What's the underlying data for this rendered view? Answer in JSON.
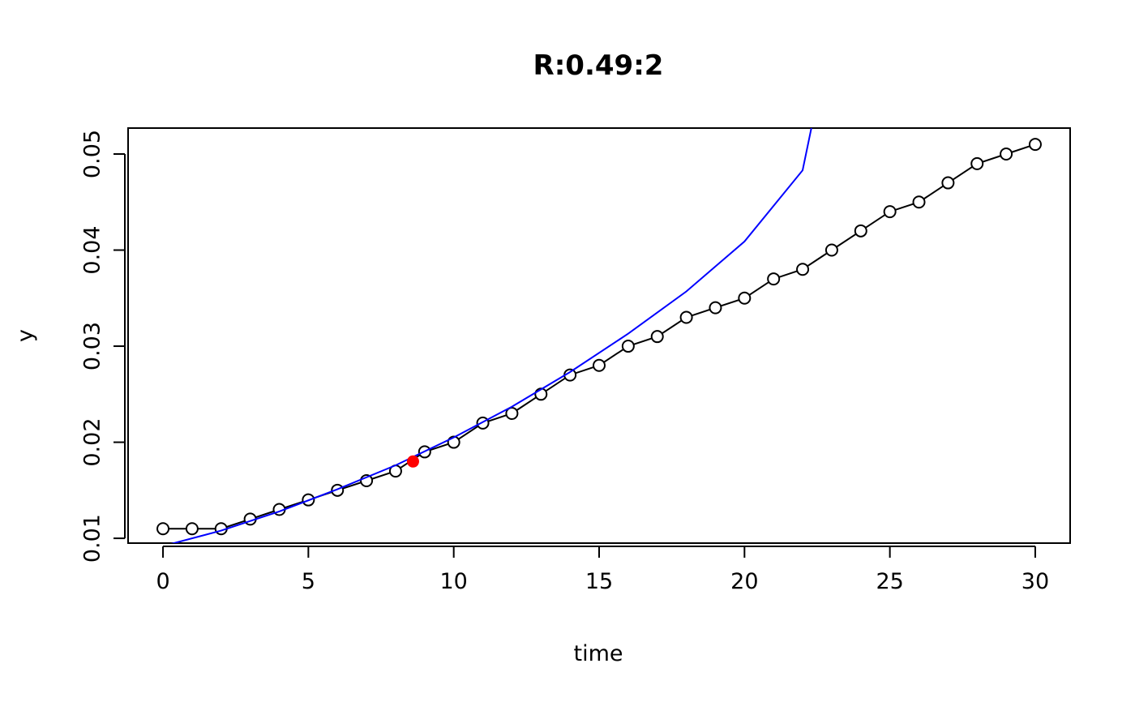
{
  "chart_data": {
    "type": "scatter",
    "title": "R:0.49:2",
    "xlabel": "time",
    "ylabel": "y",
    "xlim": [
      -1.2,
      31.2
    ],
    "ylim": [
      0.0095,
      0.0527
    ],
    "x_ticks": [
      0,
      5,
      10,
      15,
      20,
      25,
      30
    ],
    "y_ticks": [
      0.01,
      0.02,
      0.03,
      0.04,
      0.05
    ],
    "x_tick_labels": [
      "0",
      "5",
      "10",
      "15",
      "20",
      "25",
      "30"
    ],
    "y_tick_labels": [
      "0.01",
      "0.02",
      "0.03",
      "0.04",
      "0.05"
    ],
    "grid": false,
    "series": [
      {
        "style": "points-and-line",
        "color": "#000000",
        "x": [
          0,
          1,
          2,
          3,
          4,
          5,
          6,
          7,
          8,
          9,
          10,
          11,
          12,
          13,
          14,
          15,
          16,
          17,
          18,
          19,
          20,
          21,
          22,
          23,
          24,
          25,
          26,
          27,
          28,
          29,
          30
        ],
        "y": [
          0.011,
          0.011,
          0.011,
          0.012,
          0.013,
          0.014,
          0.015,
          0.016,
          0.017,
          0.019,
          0.02,
          0.022,
          0.023,
          0.025,
          0.027,
          0.028,
          0.03,
          0.031,
          0.033,
          0.034,
          0.035,
          0.037,
          0.038,
          0.04,
          0.042,
          0.044,
          0.045,
          0.047,
          0.049,
          0.05,
          0.051
        ]
      },
      {
        "style": "curve",
        "color": "#0000ff",
        "x": [
          0,
          2,
          4,
          6,
          8,
          10,
          12,
          14,
          16,
          18,
          20,
          22,
          22.3
        ],
        "y": [
          0.0092,
          0.0108,
          0.0128,
          0.0151,
          0.0176,
          0.0205,
          0.0237,
          0.0273,
          0.0313,
          0.0357,
          0.0409,
          0.0483,
          0.0527
        ]
      }
    ],
    "highlight_point": {
      "x": 8.6,
      "y": 0.018,
      "color": "#ff0000"
    }
  }
}
